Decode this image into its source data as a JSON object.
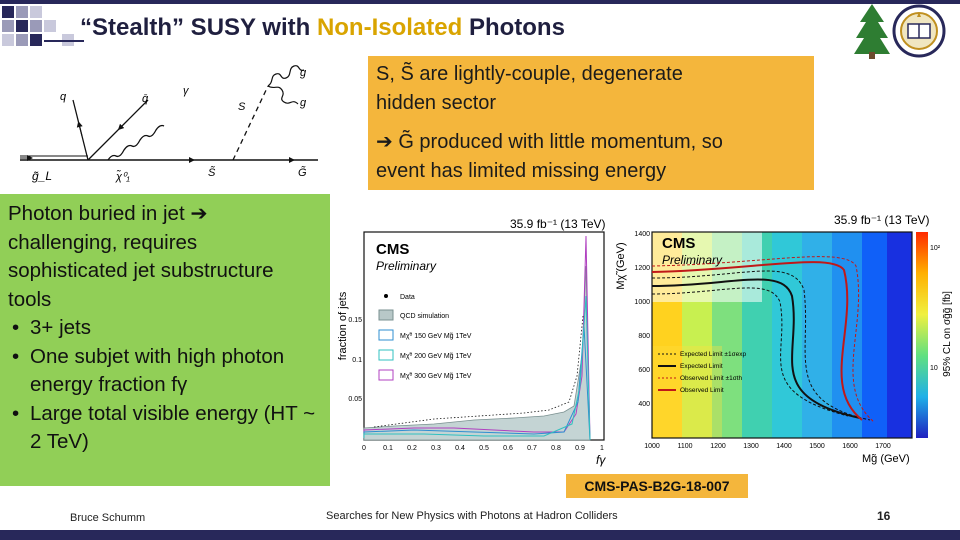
{
  "slide": {
    "title_prefix": "“Stealth” SUSY with ",
    "title_highlight": "Non-Isolated",
    "title_suffix": " Photons",
    "accent_color": "#d9a400",
    "bar_color": "#28285a"
  },
  "feynman": {
    "labels": {
      "q": "q",
      "qbar": "q̄",
      "gamma": "γ",
      "S": "S",
      "g_top": "g",
      "g_bottom": "g",
      "gL": "g̃_L",
      "chi": "χ̃⁰₁",
      "Stilde": "S̃",
      "Gtilde": "G̃"
    }
  },
  "yellow_box": {
    "line1": "S, S̃ are lightly-couple, degenerate",
    "line2": "hidden sector",
    "arrow": "➔",
    "line3": " G̃ produced with little momentum, so",
    "line4": "event has limited missing energy"
  },
  "green_box": {
    "intro_a": "Photon buried in jet ",
    "arrow": "➔",
    "intro_b": "challenging, requires sophisticated jet substructure tools",
    "bullets": [
      "3+ jets",
      "One subjet with high photon energy fraction fγ",
      "Large total visible energy (HT ~ 2 TeV)"
    ]
  },
  "chart_left": {
    "lumi": "35.9 fb⁻¹ (13 TeV)",
    "cms": "CMS",
    "prelim": "Preliminary",
    "ylabel": "fraction of jets",
    "xlabel": "fγ",
    "legend": [
      "Data",
      "QCD simulation",
      "Mχ̃⁰ 150 GeV Mg̃ 1TeV",
      "Mχ̃⁰ 200 GeV Mg̃ 1TeV",
      "Mχ̃⁰ 300 GeV Mg̃ 1TeV"
    ],
    "legend_colors": [
      "#000000",
      "#9ab0b0",
      "#2f8fd0",
      "#30c0c0",
      "#b040c0"
    ],
    "x_ticks": [
      "0",
      "0.1",
      "0.2",
      "0.3",
      "0.4",
      "0.5",
      "0.6",
      "0.7",
      "0.8",
      "0.9",
      "1"
    ],
    "y_ticks": [
      "0.05",
      "0.1",
      "0.15"
    ]
  },
  "chart_right": {
    "lumi": "35.9 fb⁻¹ (13 TeV)",
    "cms": "CMS",
    "prelim": "Preliminary",
    "ylabel": "Mχ̃ (GeV)",
    "xlabel": "Mg̃ (GeV)",
    "zlabel": "95% CL on σg̃g̃ [fb]",
    "x_ticks": [
      "1000",
      "1100",
      "1200",
      "1300",
      "1400",
      "1500",
      "1600",
      "1700"
    ],
    "y_ticks": [
      "400",
      "600",
      "800",
      "1000",
      "1200",
      "1400"
    ],
    "z_ticks": [
      "10²",
      "10"
    ],
    "legend": [
      "Expected Limit ±1σexp",
      "Expected Limit",
      "Observed Limit ±1σth",
      "Observed Limit"
    ]
  },
  "cms_ref": "CMS-PAS-B2G-18-007",
  "footer": {
    "author": "Bruce Schumm",
    "talk": "Searches for New Physics with Photons at Hadron Colliders",
    "page": "16"
  }
}
